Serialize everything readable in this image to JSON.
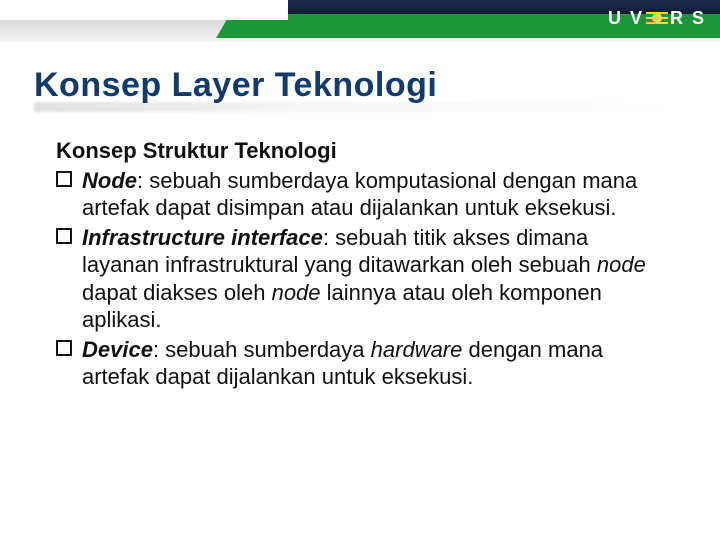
{
  "brand": {
    "logo_left": "U V",
    "logo_right": "R S",
    "navy_color": "#0d1730",
    "green_color": "#1a9638",
    "sun_color": "#f3d64b"
  },
  "slide": {
    "title": "Konsep Layer Teknologi",
    "title_color": "#123a6b",
    "title_fontsize": 34
  },
  "body": {
    "subheading": "Konsep Struktur Teknologi",
    "text_color": "#111111",
    "body_fontsize": 22,
    "items": [
      {
        "term": "Node",
        "term_style": "bold-italic",
        "text_before": ": sebuah sumberdaya komputasional dengan mana artefak dapat disimpan atau dijalankan untuk eksekusi."
      },
      {
        "term": "Infrastructure interface",
        "term_style": "bold-italic",
        "text_before": ": sebuah titik akses dimana layanan infrastruktural yang ditawarkan oleh sebuah ",
        "inline_italic_1": "node",
        "text_mid": " dapat diakses oleh ",
        "inline_italic_2": "node",
        "text_after": " lainnya atau oleh komponen aplikasi."
      },
      {
        "term": "Device",
        "term_style": "bold-italic",
        "text_before": ": sebuah sumberdaya ",
        "inline_italic_1": "hardware",
        "text_after": " dengan mana artefak dapat dijalankan untuk eksekusi."
      }
    ]
  }
}
